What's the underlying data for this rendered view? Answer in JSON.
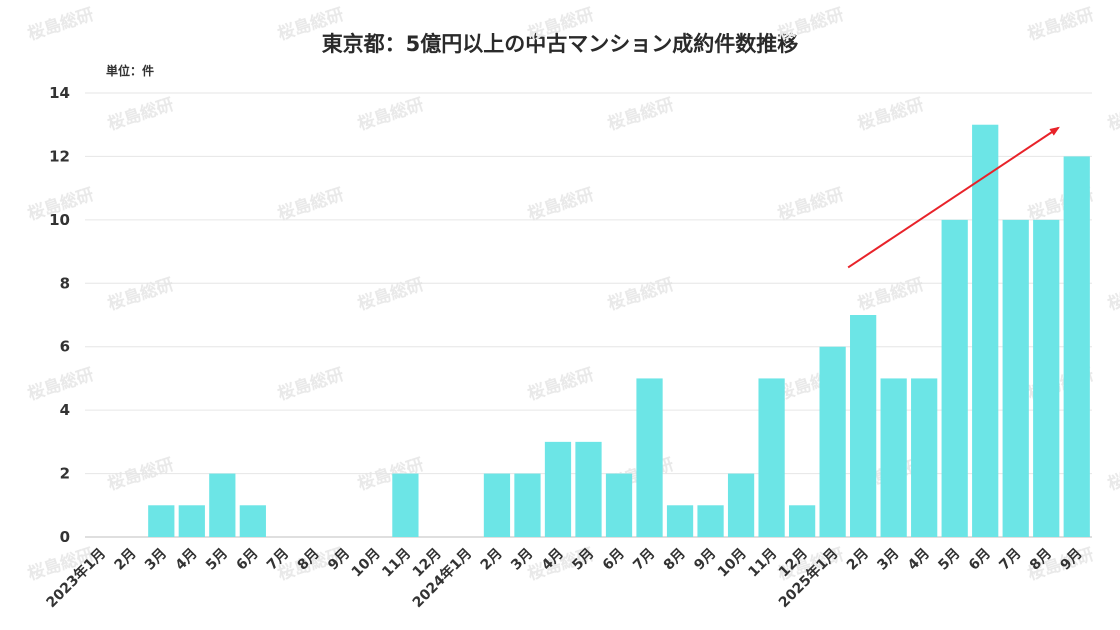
{
  "chart_data": {
    "type": "bar",
    "title": "東京都：5億円以上の中古マンション成約件数推移",
    "unit_label": "単位：件",
    "ylim": [
      0,
      14
    ],
    "yticks": [
      0,
      2,
      4,
      6,
      8,
      10,
      12,
      14
    ],
    "grid": "horizontal",
    "bar_color": "#6ce5e6",
    "categories": [
      "2023年1月",
      "2月",
      "3月",
      "4月",
      "5月",
      "6月",
      "7月",
      "8月",
      "9月",
      "10月",
      "11月",
      "12月",
      "2024年1月",
      "2月",
      "3月",
      "4月",
      "5月",
      "6月",
      "7月",
      "8月",
      "9月",
      "10月",
      "11月",
      "12月",
      "2025年1月",
      "2月",
      "3月",
      "4月",
      "5月",
      "6月",
      "7月",
      "8月",
      "9月"
    ],
    "values": [
      0,
      0,
      1,
      1,
      2,
      1,
      0,
      0,
      0,
      0,
      2,
      0,
      0,
      2,
      2,
      3,
      3,
      2,
      5,
      1,
      1,
      2,
      5,
      1,
      6,
      7,
      5,
      5,
      10,
      13,
      10,
      10,
      12
    ],
    "annotation": {
      "type": "trend-arrow",
      "color": "#e8232a",
      "from_category": "2月",
      "from_index": 25,
      "from_value": 8.5,
      "to_category": "8月",
      "to_index": 31,
      "to_value": 12.9
    }
  },
  "watermark_text": "桜島総研"
}
